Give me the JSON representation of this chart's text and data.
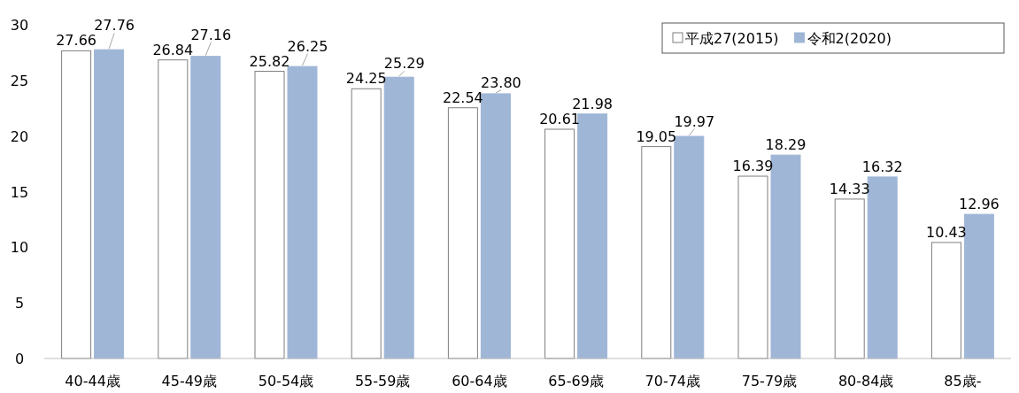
{
  "chart_data": {
    "type": "bar",
    "categories": [
      "40-44歳",
      "45-49歳",
      "50-54歳",
      "55-59歳",
      "60-64歳",
      "65-69歳",
      "70-74歳",
      "75-79歳",
      "80-84歳",
      "85歳-"
    ],
    "series": [
      {
        "name": "平成27(2015)",
        "color": "#ffffff",
        "values": [
          27.66,
          26.84,
          25.82,
          24.25,
          22.54,
          20.61,
          19.05,
          16.39,
          14.33,
          10.43
        ],
        "value_labels": [
          "27.66",
          "26.84",
          "25.82",
          "24.25",
          "22.54",
          "20.61",
          "19.05",
          "16.39",
          "14.33",
          "10.43"
        ]
      },
      {
        "name": "令和2(2020)",
        "color": "#9fb6d6",
        "values": [
          27.76,
          27.16,
          26.25,
          25.29,
          23.8,
          21.98,
          19.97,
          18.29,
          16.32,
          12.96
        ],
        "value_labels": [
          "27.76",
          "27.16",
          "26.25",
          "25.29",
          "23.80",
          "21.98",
          "19.97",
          "18.29",
          "16.32",
          "12.96"
        ]
      }
    ],
    "ylim": [
      0,
      30
    ],
    "yticks": [
      0,
      5,
      10,
      15,
      20,
      25,
      30
    ],
    "legend": "top right",
    "grid": false
  }
}
